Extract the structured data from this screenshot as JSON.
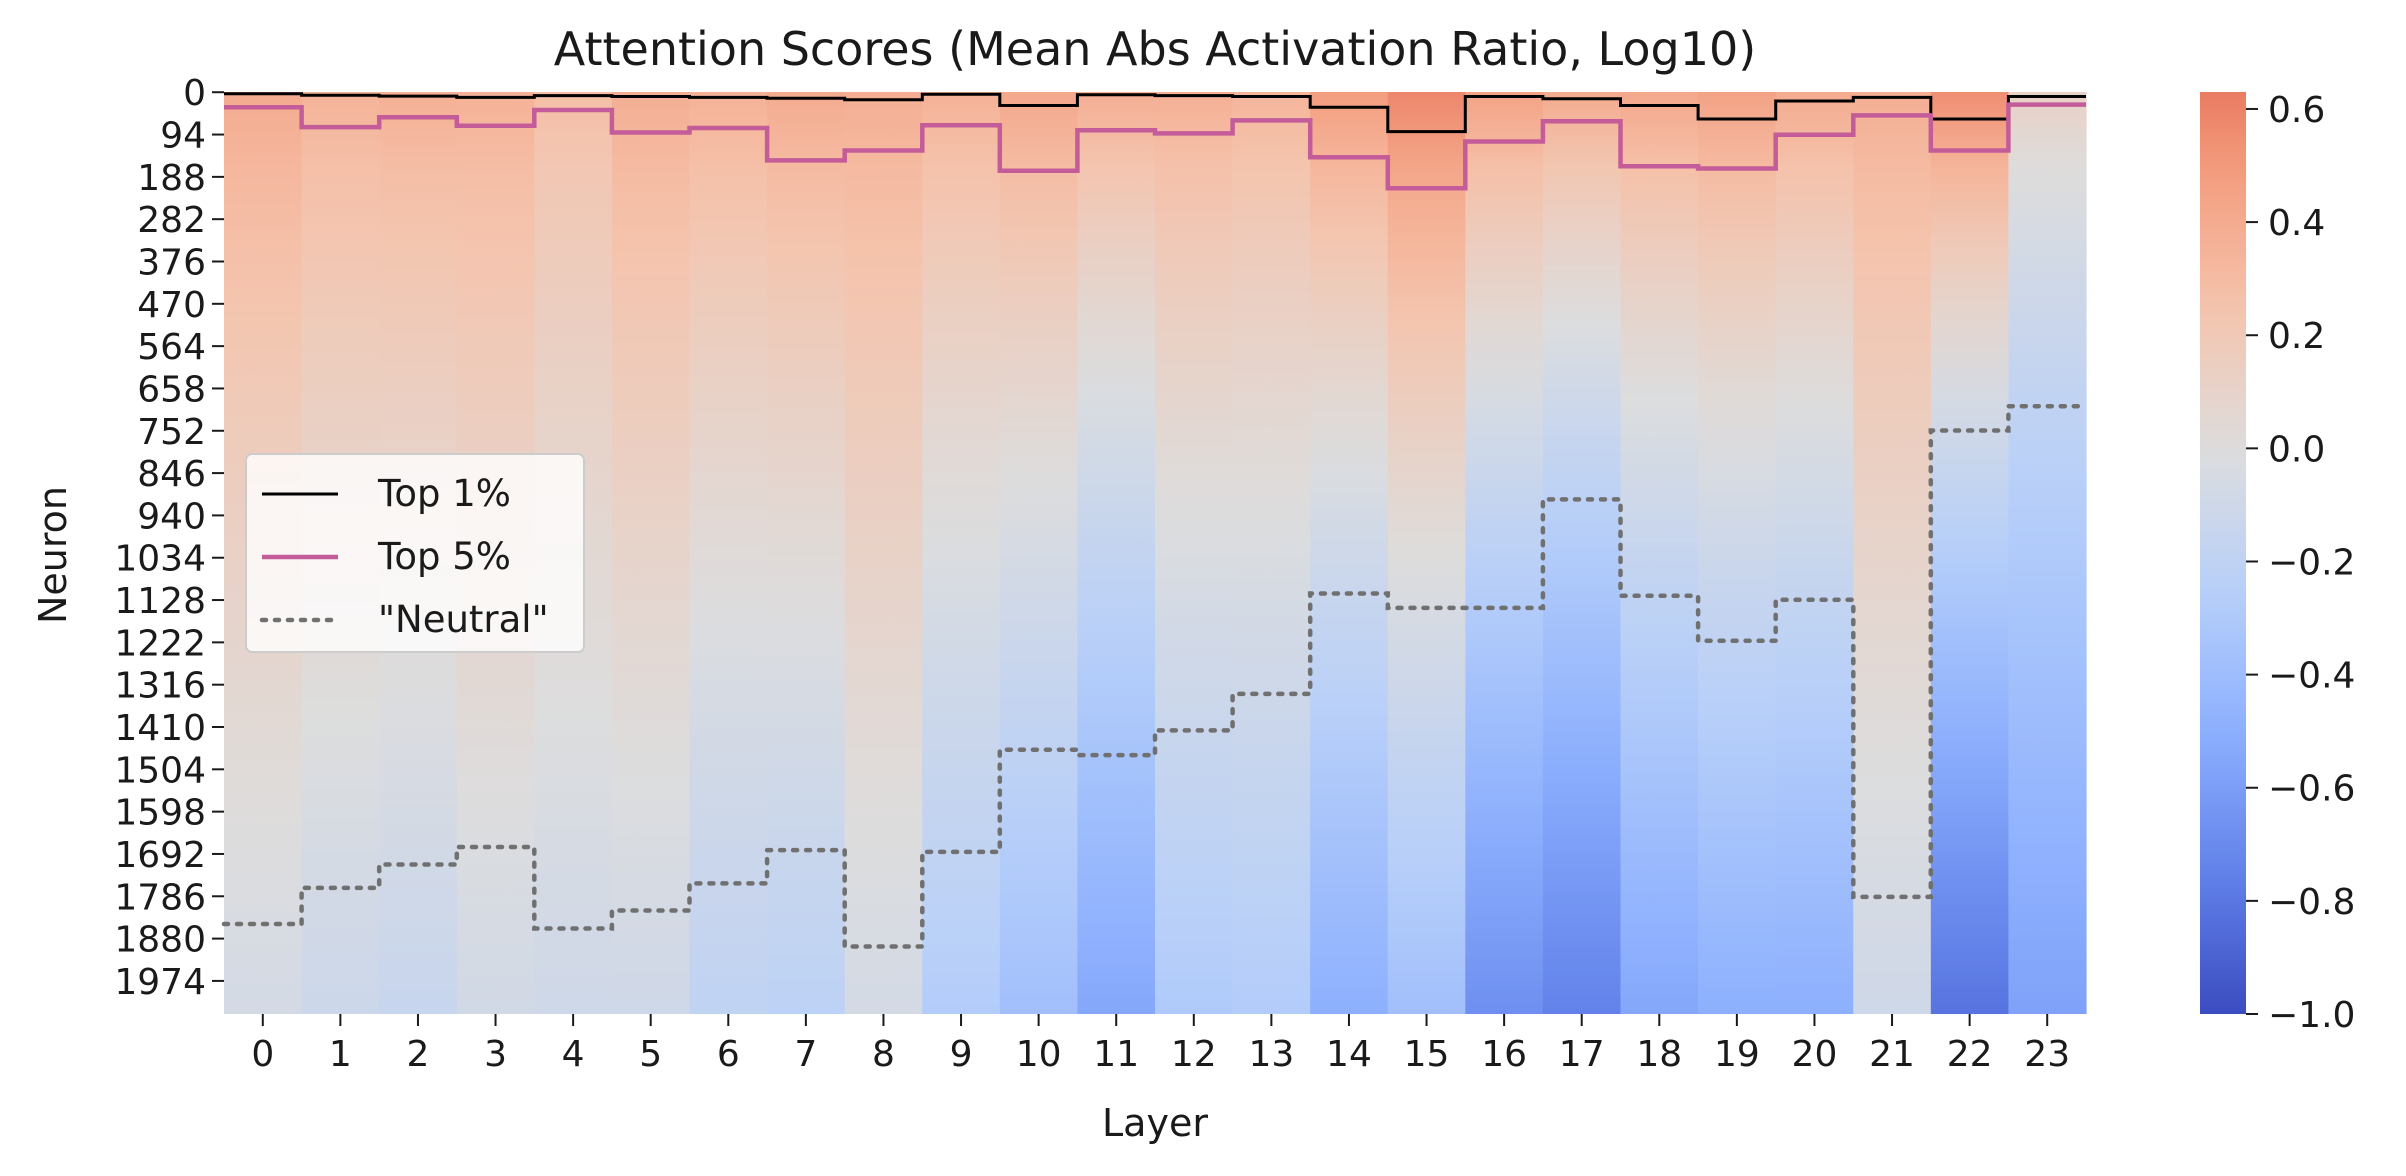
{
  "chart_data": {
    "type": "heatmap",
    "title": "Attention Scores (Mean Abs Activation Ratio, Log10)",
    "xlabel": "Layer",
    "ylabel": "Neuron",
    "x_categories": [
      "0",
      "1",
      "2",
      "3",
      "4",
      "5",
      "6",
      "7",
      "8",
      "9",
      "10",
      "11",
      "12",
      "13",
      "14",
      "15",
      "16",
      "17",
      "18",
      "19",
      "20",
      "21",
      "22",
      "23"
    ],
    "y_tick_labels": [
      "0",
      "94",
      "188",
      "282",
      "376",
      "470",
      "564",
      "658",
      "752",
      "846",
      "940",
      "1034",
      "1128",
      "1222",
      "1316",
      "1410",
      "1504",
      "1598",
      "1692",
      "1786",
      "1880",
      "1974"
    ],
    "y_range": [
      0,
      2048
    ],
    "colorbar": {
      "range": [
        -1.0,
        0.63
      ],
      "tick_values": [
        0.6,
        0.4,
        0.2,
        0.0,
        -0.2,
        -0.4,
        -0.6,
        -0.8,
        -1.0
      ],
      "tick_labels": [
        "0.6",
        "0.4",
        "0.2",
        "0.0",
        "−0.2",
        "−0.4",
        "−0.6",
        "−0.8",
        "−1.0"
      ],
      "colormap": "coolwarm"
    },
    "column_profiles": {
      "top_value": [
        0.4,
        0.35,
        0.37,
        0.36,
        0.28,
        0.38,
        0.36,
        0.4,
        0.38,
        0.36,
        0.42,
        0.38,
        0.37,
        0.34,
        0.48,
        0.58,
        0.45,
        0.4,
        0.42,
        0.45,
        0.4,
        0.38,
        0.55,
        0.12
      ],
      "bottom_value": [
        -0.07,
        -0.12,
        -0.15,
        -0.08,
        -0.1,
        -0.1,
        -0.2,
        -0.22,
        -0.07,
        -0.28,
        -0.38,
        -0.55,
        -0.3,
        -0.28,
        -0.5,
        -0.38,
        -0.68,
        -0.75,
        -0.55,
        -0.5,
        -0.5,
        -0.1,
        -0.82,
        -0.58
      ]
    },
    "series": [
      {
        "name": "Top 1%",
        "style": "solid",
        "color": "#000000",
        "values": [
          4,
          7,
          9,
          12,
          8,
          10,
          12,
          14,
          17,
          5,
          30,
          6,
          8,
          10,
          34,
          88,
          10,
          15,
          30,
          60,
          20,
          12,
          60,
          10
        ]
      },
      {
        "name": "Top 5%",
        "style": "solid",
        "color": "#c45c9a",
        "values": [
          34,
          78,
          56,
          75,
          40,
          90,
          80,
          152,
          130,
          74,
          175,
          85,
          92,
          63,
          145,
          214,
          110,
          65,
          165,
          170,
          95,
          52,
          130,
          28
        ]
      },
      {
        "name": "\"Neutral\"",
        "style": "dotted",
        "color": "#707070",
        "values": [
          1848,
          1768,
          1716,
          1677,
          1858,
          1818,
          1758,
          1684,
          1898,
          1688,
          1461,
          1473,
          1418,
          1337,
          1114,
          1146,
          1146,
          905,
          1119,
          1219,
          1128,
          1788,
          752,
          698
        ]
      }
    ],
    "legend": {
      "position": "center-left",
      "entries": [
        "Top 1%",
        "Top 5%",
        "\"Neutral\""
      ]
    },
    "grid": false
  }
}
